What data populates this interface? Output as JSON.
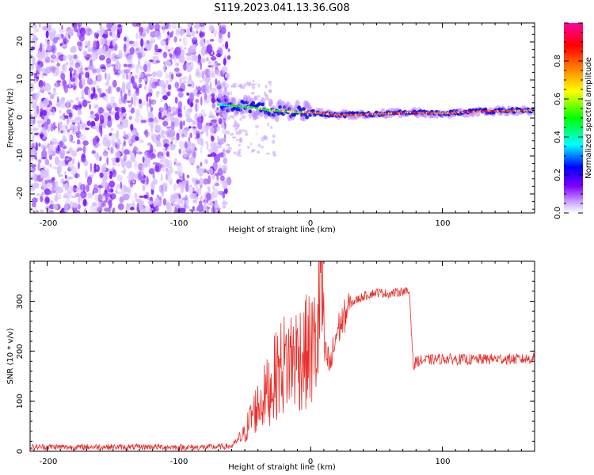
{
  "figure": {
    "title": "S119.2023.041.13.36.G08"
  },
  "chart_data": [
    {
      "type": "heatmap",
      "xlabel": "Height of straight line (km)",
      "ylabel": "Frequency (Hz)",
      "xlim": [
        -213,
        170
      ],
      "ylim": [
        -25,
        25
      ],
      "xticks": [
        "-200",
        "-100",
        "0",
        "100"
      ],
      "yticks": [
        "20",
        "10",
        "0",
        "-10",
        "-20"
      ],
      "colorbar": {
        "label": "Normalized spectral amplitude",
        "range": [
          0,
          1
        ],
        "ticks": [
          "0.0",
          "0.2",
          "0.4",
          "0.6",
          "0.8"
        ],
        "colors": [
          "#ffffff",
          "#8000ff",
          "#0000ff",
          "#00ffff",
          "#00ff00",
          "#ffff00",
          "#ff8000",
          "#ff0000",
          "#ff00a0"
        ]
      },
      "noise_region_x": [
        -213,
        -62
      ],
      "ridge": [
        {
          "x": -70,
          "freq": 3.5,
          "amp": 0.45
        },
        {
          "x": -50,
          "freq": 3.0,
          "amp": 0.55
        },
        {
          "x": -30,
          "freq": 2.0,
          "amp": 0.6
        },
        {
          "x": -10,
          "freq": 1.5,
          "amp": 0.7
        },
        {
          "x": 0,
          "freq": 1.5,
          "amp": 0.75
        },
        {
          "x": 20,
          "freq": 0.8,
          "amp": 0.9
        },
        {
          "x": 50,
          "freq": 1.0,
          "amp": 0.8
        },
        {
          "x": 75,
          "freq": 1.5,
          "amp": 0.85
        },
        {
          "x": 100,
          "freq": 1.2,
          "amp": 0.8
        },
        {
          "x": 130,
          "freq": 1.8,
          "amp": 0.85
        },
        {
          "x": 170,
          "freq": 2.0,
          "amp": 0.8
        }
      ]
    },
    {
      "type": "line",
      "xlabel": "Height of straight line (km)",
      "ylabel": "SNR (10 * v/v)",
      "xlim": [
        -213,
        170
      ],
      "ylim": [
        0,
        380
      ],
      "xticks": [
        "-200",
        "-100",
        "0",
        "100"
      ],
      "yticks": [
        "300",
        "200",
        "100",
        "0"
      ],
      "series": [
        {
          "color": "#e8302c",
          "x": [
            -213,
            -200,
            -180,
            -160,
            -140,
            -120,
            -100,
            -80,
            -60,
            -50,
            -45,
            -40,
            -35,
            -30,
            -25,
            -20,
            -15,
            -10,
            -5,
            0,
            5,
            8,
            10,
            15,
            20,
            25,
            30,
            40,
            50,
            60,
            70,
            75,
            78,
            80,
            90,
            100,
            120,
            140,
            160,
            170
          ],
          "y": [
            8,
            9,
            8,
            9,
            8,
            9,
            8,
            8,
            10,
            35,
            70,
            90,
            110,
            130,
            160,
            175,
            185,
            190,
            195,
            200,
            215,
            380,
            200,
            170,
            240,
            265,
            295,
            310,
            318,
            315,
            320,
            318,
            165,
            180,
            183,
            185,
            183,
            185,
            184,
            186
          ]
        }
      ]
    }
  ]
}
